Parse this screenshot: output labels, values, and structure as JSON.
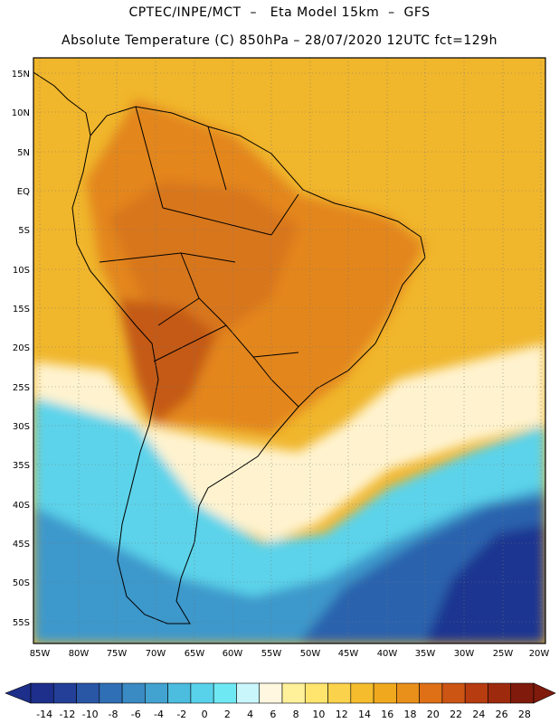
{
  "header": {
    "line1": "CPTEC/INPE/MCT  –   Eta Model 15km  –  GFS",
    "line2": "Absolute Temperature (C) 850hPa – 28/07/2020 12UTC fct=129h"
  },
  "axes": {
    "lat_labels": [
      "15N",
      "10N",
      "5N",
      "EQ",
      "5S",
      "10S",
      "15S",
      "20S",
      "25S",
      "30S",
      "35S",
      "40S",
      "45S",
      "50S",
      "55S"
    ],
    "lon_labels": [
      "85W",
      "80W",
      "75W",
      "70W",
      "65W",
      "60W",
      "55W",
      "50W",
      "45W",
      "40W",
      "35W",
      "30W",
      "25W",
      "20W"
    ]
  },
  "colorbar": {
    "labels": [
      "-14",
      "-12",
      "-10",
      "-8",
      "-6",
      "-4",
      "-2",
      "0",
      "2",
      "4",
      "6",
      "8",
      "10",
      "12",
      "14",
      "16",
      "18",
      "20",
      "22",
      "24",
      "26",
      "28"
    ],
    "colors": [
      "#1d2f8a",
      "#243f97",
      "#2a56a6",
      "#2f6fb5",
      "#3a8ac3",
      "#42a3d1",
      "#4cbcdf",
      "#58d2ea",
      "#6ee9f4",
      "#c9f6fb",
      "#fff7e0",
      "#fff19a",
      "#ffe46e",
      "#fbd24c",
      "#f5bd2e",
      "#f0a81e",
      "#e8901a",
      "#df7016",
      "#cc5514",
      "#b73c10",
      "#9e2a0e",
      "#7f1a0c"
    ],
    "under_color": "#1d2f8a",
    "over_color": "#7f1a0c"
  },
  "map_colors": {
    "deep_cold": "#1f3590",
    "cold": "#2c66b0",
    "cool": "#3f9ccd",
    "cyan": "#54cce6",
    "light_cyan": "#8feaf5",
    "pale": "#fff6dc",
    "pale_yellow": "#ffe783",
    "yellow": "#f7c43a",
    "orange": "#ef9f22",
    "dark_orange": "#dc7a1c",
    "red_orange": "#c25a16",
    "coast": "#000000"
  }
}
